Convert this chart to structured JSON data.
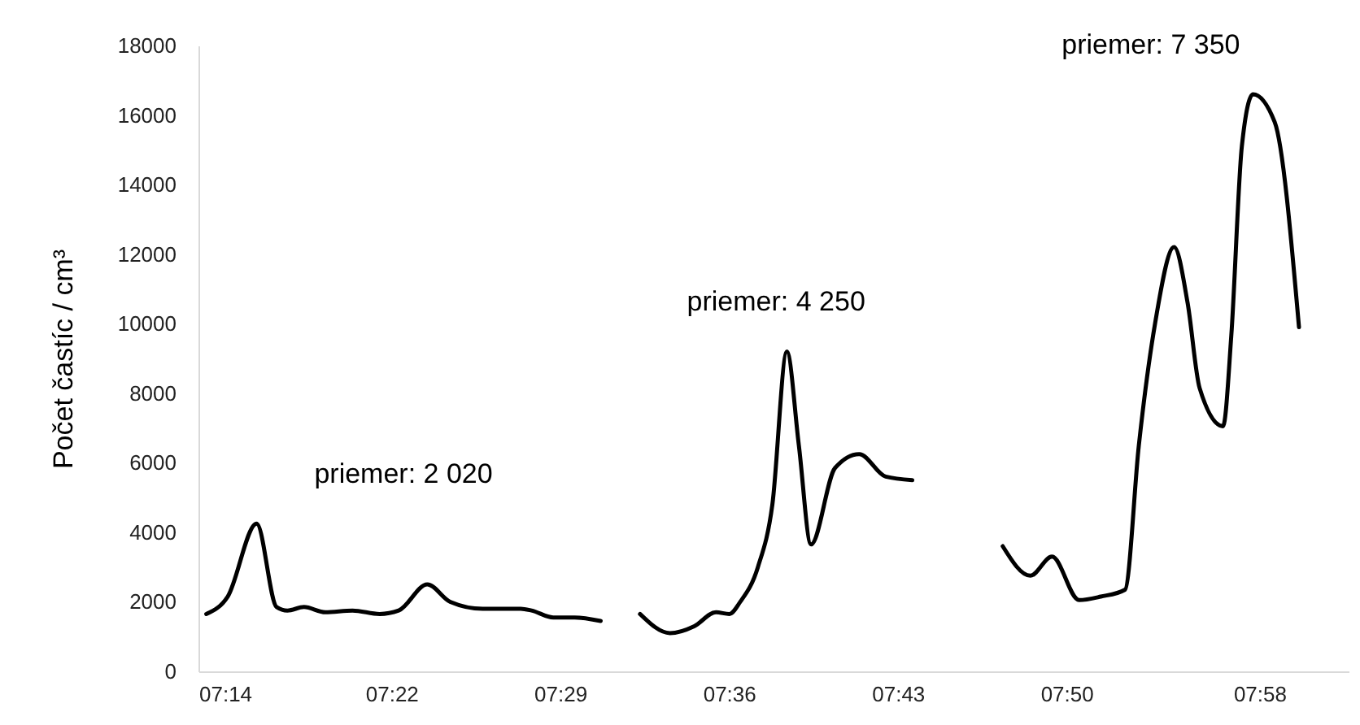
{
  "chart_data": {
    "type": "line",
    "ylabel": "Počet častíc / cm³",
    "xlim": [
      7.2333,
      8.0283
    ],
    "xticks": [
      {
        "value": 7.2333,
        "label": "07:14"
      },
      {
        "value": 7.3667,
        "label": "07:22"
      },
      {
        "value": 7.4833,
        "label": "07:29"
      },
      {
        "value": 7.6,
        "label": "07:36"
      },
      {
        "value": 7.7167,
        "label": "07:43"
      },
      {
        "value": 7.8333,
        "label": "07:50"
      },
      {
        "value": 7.9667,
        "label": "07:58"
      }
    ],
    "ylim": [
      0,
      18000
    ],
    "yticks": [
      0,
      2000,
      4000,
      6000,
      8000,
      10000,
      12000,
      14000,
      16000,
      18000
    ],
    "series": [
      {
        "color": "#000000",
        "x": [
          7.2387,
          7.2535,
          7.2735,
          7.2873,
          7.2948,
          7.3062,
          7.321,
          7.3398,
          7.3585,
          7.3717,
          7.3915,
          7.4073,
          7.4298,
          7.456,
          7.4635,
          7.4785,
          7.4933,
          7.5113
        ],
        "values": [
          1650,
          2150,
          4250,
          1850,
          1750,
          1850,
          1700,
          1750,
          1650,
          1750,
          2500,
          2000,
          1800,
          1800,
          1750,
          1550,
          1550,
          1450
        ]
      },
      {
        "color": "#000000",
        "x": [
          7.5385,
          7.5592,
          7.576,
          7.591,
          7.6003,
          7.6078,
          7.62,
          7.63,
          7.64,
          7.6483,
          7.6567,
          7.6733,
          7.69,
          7.7083,
          7.7267
        ],
        "values": [
          1650,
          1100,
          1300,
          1700,
          1650,
          2000,
          3000,
          4800,
          9200,
          6500,
          3650,
          5850,
          6250,
          5600,
          5500
        ]
      },
      {
        "color": "#000000",
        "x": [
          7.7892,
          7.8083,
          7.8233,
          7.842,
          7.857,
          7.8738,
          7.8833,
          7.8945,
          7.9077,
          7.917,
          7.9253,
          7.9415,
          7.9472,
          7.9545,
          7.9622,
          7.9772,
          7.994
        ],
        "values": [
          3600,
          2750,
          3300,
          2050,
          2150,
          2350,
          6500,
          10000,
          12200,
          10600,
          8150,
          7050,
          9650,
          15100,
          16600,
          15800,
          9900
        ]
      }
    ],
    "annotations": [
      "priemer: 2 020",
      "priemer: 4 250",
      "priemer: 7 350"
    ]
  }
}
